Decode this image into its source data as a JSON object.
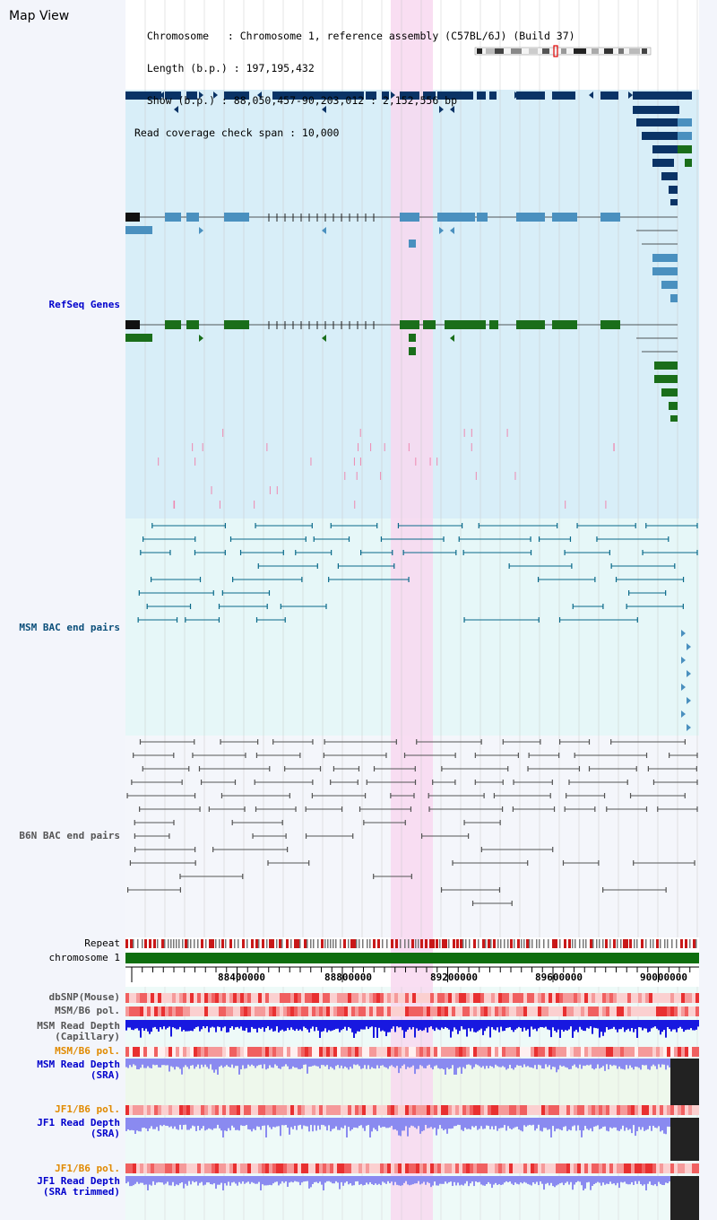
{
  "header": {
    "view_title": "Map View",
    "info_lines": [
      "  Chromosome   : Chromosome 1, reference assembly (C57BL/6J) (Build 37)",
      "  Length (b.p.) : 197,195,432",
      "  Show (b.p.) : 88,050,457-90,203,012 : 2,152,556 bp",
      "Read coverage check span : 10,000"
    ]
  },
  "tracks": {
    "refseq": "RefSeq Genes",
    "msm_bac": "MSM BAC end pairs",
    "b6n_bac": "B6N BAC end pairs",
    "repeat": "Repeat",
    "chromosome": "chromosome 1",
    "dbsnp": "dbSNP(Mouse)",
    "msm_b6_pol_1": "MSM/B6 pol.",
    "msm_read_depth_cap": "MSM Read Depth\n(Capillary)",
    "msm_b6_pol_2": "MSM/B6 pol.",
    "msm_read_depth_sra": "MSM Read Depth\n(SRA)",
    "jf1_b6_pol_1": "JF1/B6 pol.",
    "jf1_read_depth_sra": "JF1 Read Depth\n(SRA)",
    "jf1_b6_pol_2": "JF1/B6 pol.",
    "jf1_read_depth_trim": "JF1 Read Depth\n(SRA trimmed)"
  },
  "ruler": {
    "ticks": [
      "88400000",
      "88800000",
      "89200000",
      "89600000",
      "90000000"
    ]
  },
  "colors": {
    "refseq_bg": "#d8eef8",
    "msm_bg": "#e6f7f8",
    "b6n_bg": "#f4f6fb",
    "highlight": "#f8d8f0",
    "navy": "#0a3366",
    "steel": "#4a90bf",
    "green": "#1a6e1a",
    "chrom_green": "#0e6e0e",
    "depth_blue": "#1818e0",
    "depth_purple": "#8a8af0"
  }
}
